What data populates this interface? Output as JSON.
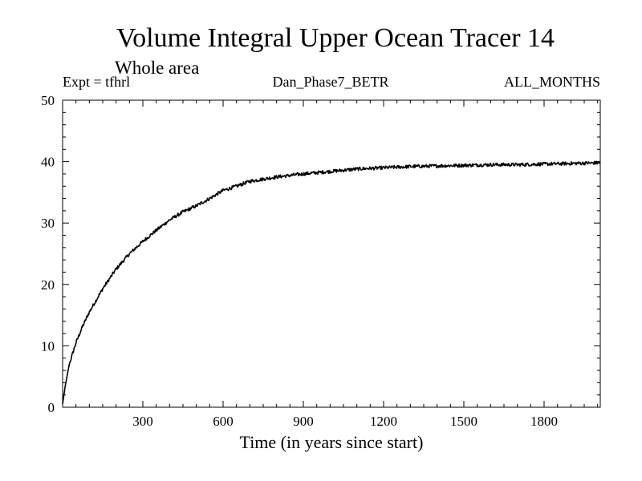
{
  "chart_data": {
    "type": "line",
    "title": "Volume Integral Upper Ocean Tracer 14",
    "subtitle": "Whole area",
    "expt_label": "Expt = tfhrl",
    "run_label": "Dan_Phase7_BETR",
    "months_label": "ALL_MONTHS",
    "xlabel": "Time (in years since start)",
    "ylabel": "",
    "xlim": [
      0,
      2010
    ],
    "ylim": [
      0,
      50
    ],
    "xticks": [
      300,
      600,
      900,
      1200,
      1500,
      1800
    ],
    "yticks": [
      0,
      10,
      20,
      30,
      40,
      50
    ],
    "grid": false,
    "series": [
      {
        "name": "Tracer 14",
        "x": [
          0,
          10,
          25,
          50,
          75,
          100,
          150,
          200,
          250,
          300,
          350,
          400,
          450,
          500,
          550,
          600,
          650,
          700,
          800,
          900,
          1000,
          1100,
          1200,
          1300,
          1400,
          1500,
          1600,
          1700,
          1800,
          1900,
          2010
        ],
        "y": [
          0.5,
          3.5,
          7.0,
          10.5,
          13.2,
          15.5,
          19.3,
          22.5,
          25.0,
          27.0,
          28.8,
          30.5,
          31.8,
          32.8,
          34.0,
          35.3,
          36.0,
          36.8,
          37.5,
          38.0,
          38.4,
          38.8,
          39.0,
          39.2,
          39.3,
          39.4,
          39.5,
          39.5,
          39.6,
          39.7,
          39.8
        ]
      }
    ]
  }
}
